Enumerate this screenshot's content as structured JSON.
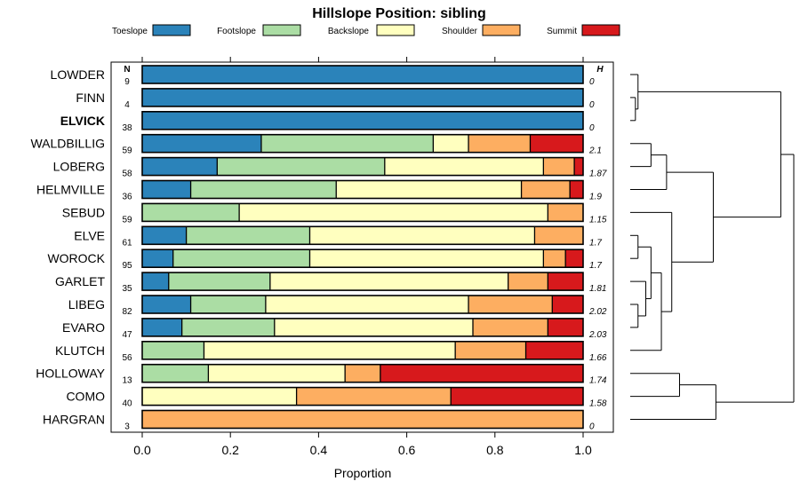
{
  "chart_data": {
    "type": "bar",
    "stacked": true,
    "orientation": "horizontal",
    "title": "Hillslope Position: sibling",
    "xlabel": "Proportion",
    "ylabel": "",
    "xlim": [
      0,
      1
    ],
    "x_ticks": [
      "0.0",
      "0.2",
      "0.4",
      "0.6",
      "0.8",
      "1.0"
    ],
    "n_header": "N",
    "h_header": "H",
    "legend_position": "top",
    "series_names": [
      "Toeslope",
      "Footslope",
      "Backslope",
      "Shoulder",
      "Summit"
    ],
    "colors": [
      "#2b83ba",
      "#abdda4",
      "#ffffbf",
      "#fdae61",
      "#d7191c"
    ],
    "categories": [
      "LOWDER",
      "FINN",
      "ELVICK",
      "WALDBILLIG",
      "LOBERG",
      "HELMVILLE",
      "SEBUD",
      "ELVE",
      "WOROCK",
      "GARLET",
      "LIBEG",
      "EVARO",
      "KLUTCH",
      "HOLLOWAY",
      "COMO",
      "HARGRAN"
    ],
    "highlighted_category": "ELVICK",
    "n": [
      "9",
      "4",
      "38",
      "59",
      "58",
      "36",
      "59",
      "61",
      "95",
      "35",
      "82",
      "47",
      "56",
      "13",
      "40",
      "3"
    ],
    "h": [
      "0",
      "0",
      "0",
      "2.1",
      "1.87",
      "1.9",
      "1.15",
      "1.7",
      "1.7",
      "1.81",
      "2.02",
      "2.03",
      "1.66",
      "1.74",
      "1.58",
      "0"
    ],
    "series": [
      {
        "name": "Toeslope",
        "values": [
          1.0,
          1.0,
          1.0,
          0.27,
          0.17,
          0.11,
          0.0,
          0.1,
          0.07,
          0.06,
          0.11,
          0.09,
          0.0,
          0.0,
          0.0,
          0.0
        ]
      },
      {
        "name": "Footslope",
        "values": [
          0.0,
          0.0,
          0.0,
          0.39,
          0.38,
          0.33,
          0.22,
          0.28,
          0.31,
          0.23,
          0.17,
          0.21,
          0.14,
          0.15,
          0.0,
          0.0
        ]
      },
      {
        "name": "Backslope",
        "values": [
          0.0,
          0.0,
          0.0,
          0.08,
          0.36,
          0.42,
          0.7,
          0.51,
          0.53,
          0.54,
          0.46,
          0.45,
          0.57,
          0.31,
          0.35,
          0.0
        ]
      },
      {
        "name": "Shoulder",
        "values": [
          0.0,
          0.0,
          0.0,
          0.14,
          0.07,
          0.11,
          0.08,
          0.11,
          0.05,
          0.09,
          0.19,
          0.17,
          0.16,
          0.08,
          0.35,
          1.0
        ]
      },
      {
        "name": "Summit",
        "values": [
          0.0,
          0.0,
          0.0,
          0.12,
          0.02,
          0.03,
          0.0,
          0.0,
          0.04,
          0.08,
          0.07,
          0.08,
          0.13,
          0.46,
          0.3,
          0.0
        ]
      }
    ],
    "dendrogram": {
      "linkage_order": "rows top to bottom",
      "merges": [
        [
          [
            1
          ],
          [
            2
          ],
          0.02
        ],
        [
          [
            0
          ],
          [
            1,
            2
          ],
          0.03
        ],
        [
          [
            3
          ],
          [
            4
          ],
          0.08
        ],
        [
          [
            3,
            4
          ],
          [
            5
          ],
          0.14
        ],
        [
          [
            7
          ],
          [
            8
          ],
          0.03
        ],
        [
          [
            10
          ],
          [
            11
          ],
          0.03
        ],
        [
          [
            9
          ],
          [
            10,
            11
          ],
          0.06
        ],
        [
          [
            7,
            8
          ],
          [
            9,
            10,
            11
          ],
          0.08
        ],
        [
          [
            7,
            8,
            9,
            10,
            11
          ],
          [
            12
          ],
          0.12
        ],
        [
          [
            6
          ],
          [
            7,
            8,
            9,
            10,
            11,
            12
          ],
          0.16
        ],
        [
          [
            3,
            4,
            5
          ],
          [
            6,
            7,
            8,
            9,
            10,
            11,
            12
          ],
          0.32
        ],
        [
          [
            13
          ],
          [
            14
          ],
          0.19
        ],
        [
          [
            13,
            14
          ],
          [
            15
          ],
          0.33
        ],
        [
          [
            0,
            1,
            2
          ],
          [
            3,
            4,
            5,
            6,
            7,
            8,
            9,
            10,
            11,
            12
          ],
          0.58
        ],
        [
          [
            0,
            1,
            2,
            3,
            4,
            5,
            6,
            7,
            8,
            9,
            10,
            11,
            12
          ],
          [
            13,
            14,
            15
          ],
          0.63
        ]
      ],
      "max_height": 0.63
    }
  }
}
